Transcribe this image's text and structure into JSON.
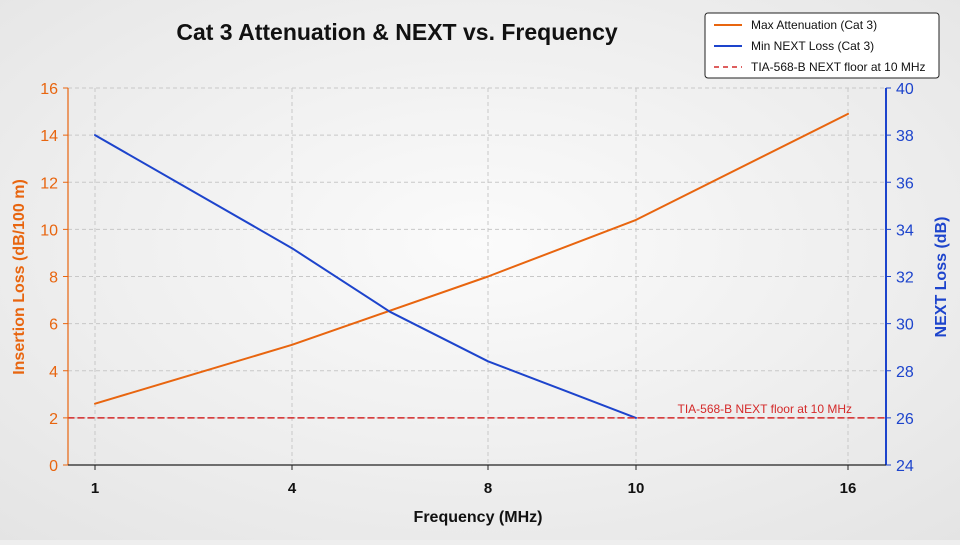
{
  "chart_data": {
    "type": "line",
    "title": "Cat 3 Attenuation & NEXT vs. Frequency",
    "xlabel": "Frequency (MHz)",
    "ylabel_left": "Insertion Loss (dB/100 m)",
    "ylabel_right": "NEXT Loss (dB)",
    "x_ticks": [
      {
        "label": "1",
        "value": 1
      },
      {
        "label": "4",
        "value": 4
      },
      {
        "label": "8",
        "value": 8
      },
      {
        "label": "10",
        "value": 10
      },
      {
        "label": "16",
        "value": 16
      }
    ],
    "ylim_left": [
      0,
      16
    ],
    "yticks_left": [
      0,
      2,
      4,
      6,
      8,
      10,
      12,
      14,
      16
    ],
    "ylim_right": [
      24,
      40
    ],
    "yticks_right": [
      24,
      26,
      28,
      30,
      32,
      34,
      36,
      38,
      40
    ],
    "grid": true,
    "legend_position": "top-right",
    "series": [
      {
        "name": "Max Attenuation (Cat 3)",
        "axis": "left",
        "color": "#e8650f",
        "style": "solid",
        "points": [
          {
            "x": 1,
            "y": 2.6
          },
          {
            "x": 4,
            "y": 5.1
          },
          {
            "x": 8,
            "y": 8.0
          },
          {
            "x": 10,
            "y": 10.4
          },
          {
            "x": 16,
            "y": 14.9
          }
        ]
      },
      {
        "name": "Min NEXT Loss (Cat 3)",
        "axis": "right",
        "color": "#1d44cc",
        "style": "solid",
        "points": [
          {
            "x": 1,
            "y": 38.0
          },
          {
            "x": 4,
            "y": 33.2
          },
          {
            "x": 6,
            "y": 30.5
          },
          {
            "x": 8,
            "y": 28.4
          },
          {
            "x": 9,
            "y": 27.2
          },
          {
            "x": 10,
            "y": 26.0
          }
        ]
      },
      {
        "name": "TIA-568-B NEXT floor at 10 MHz",
        "axis": "right",
        "color": "#d42a2a",
        "style": "dashed",
        "points": [
          {
            "x": 1,
            "y": 26.0
          },
          {
            "x": 16,
            "y": 26.0
          }
        ]
      }
    ],
    "annotations": [
      {
        "text": "TIA-568-B NEXT floor at 10 MHz",
        "color": "#d42a2a"
      }
    ],
    "colors": {
      "left_axis": "#e8650f",
      "right_axis": "#1d44cc",
      "text": "#111111",
      "grid": "#c8c8c8"
    }
  }
}
